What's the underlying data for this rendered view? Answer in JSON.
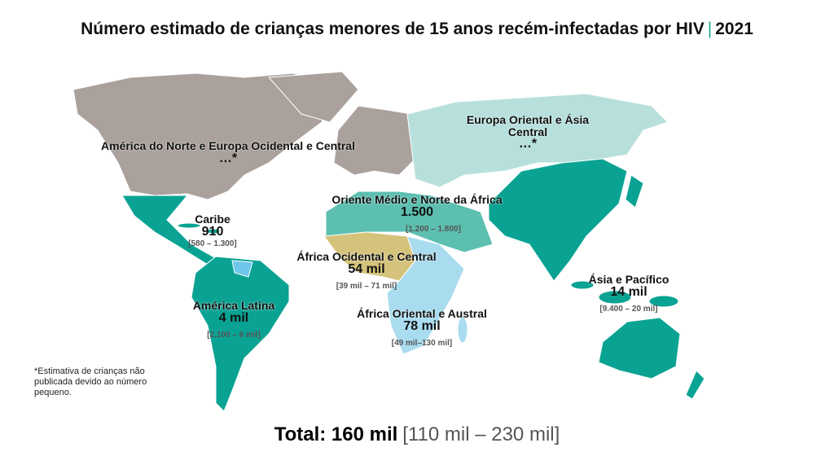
{
  "header": {
    "title": "Número estimado de crianças menores de 15 anos recém-infectadas por HIV",
    "separator": "|",
    "year": "2021"
  },
  "regions": [
    {
      "name": "América do Norte e Europa Ocidental e Central",
      "value": "…*"
    },
    {
      "name": "Europa Oriental e Ásia Central",
      "value": "…*"
    },
    {
      "name": "Oriente Médio e Norte da África",
      "value": "1.500",
      "range": "[1.200 – 1.800]"
    },
    {
      "name": "Caribe",
      "value": "910",
      "range": "[580 – 1.300]"
    },
    {
      "name": "África Ocidental e Central",
      "value": "54 mil",
      "range": "[39 mil – 71 mil]"
    },
    {
      "name": "América Latina",
      "value": "4 mil",
      "range": "[2.100 – 6 mil]"
    },
    {
      "name": "África Oriental e Austral",
      "value": "78 mil",
      "range": "[49 mil–130 mil]"
    },
    {
      "name": "Ásia e Pacífico",
      "value": "14 mil",
      "range": "[9.400 – 20 mil]"
    }
  ],
  "footnote": "*Estimativa de crianças não publicada devido ao número pequeno.",
  "total": {
    "label": "Total: 160 mil",
    "range": "[110 mil – 230 mil]"
  }
}
